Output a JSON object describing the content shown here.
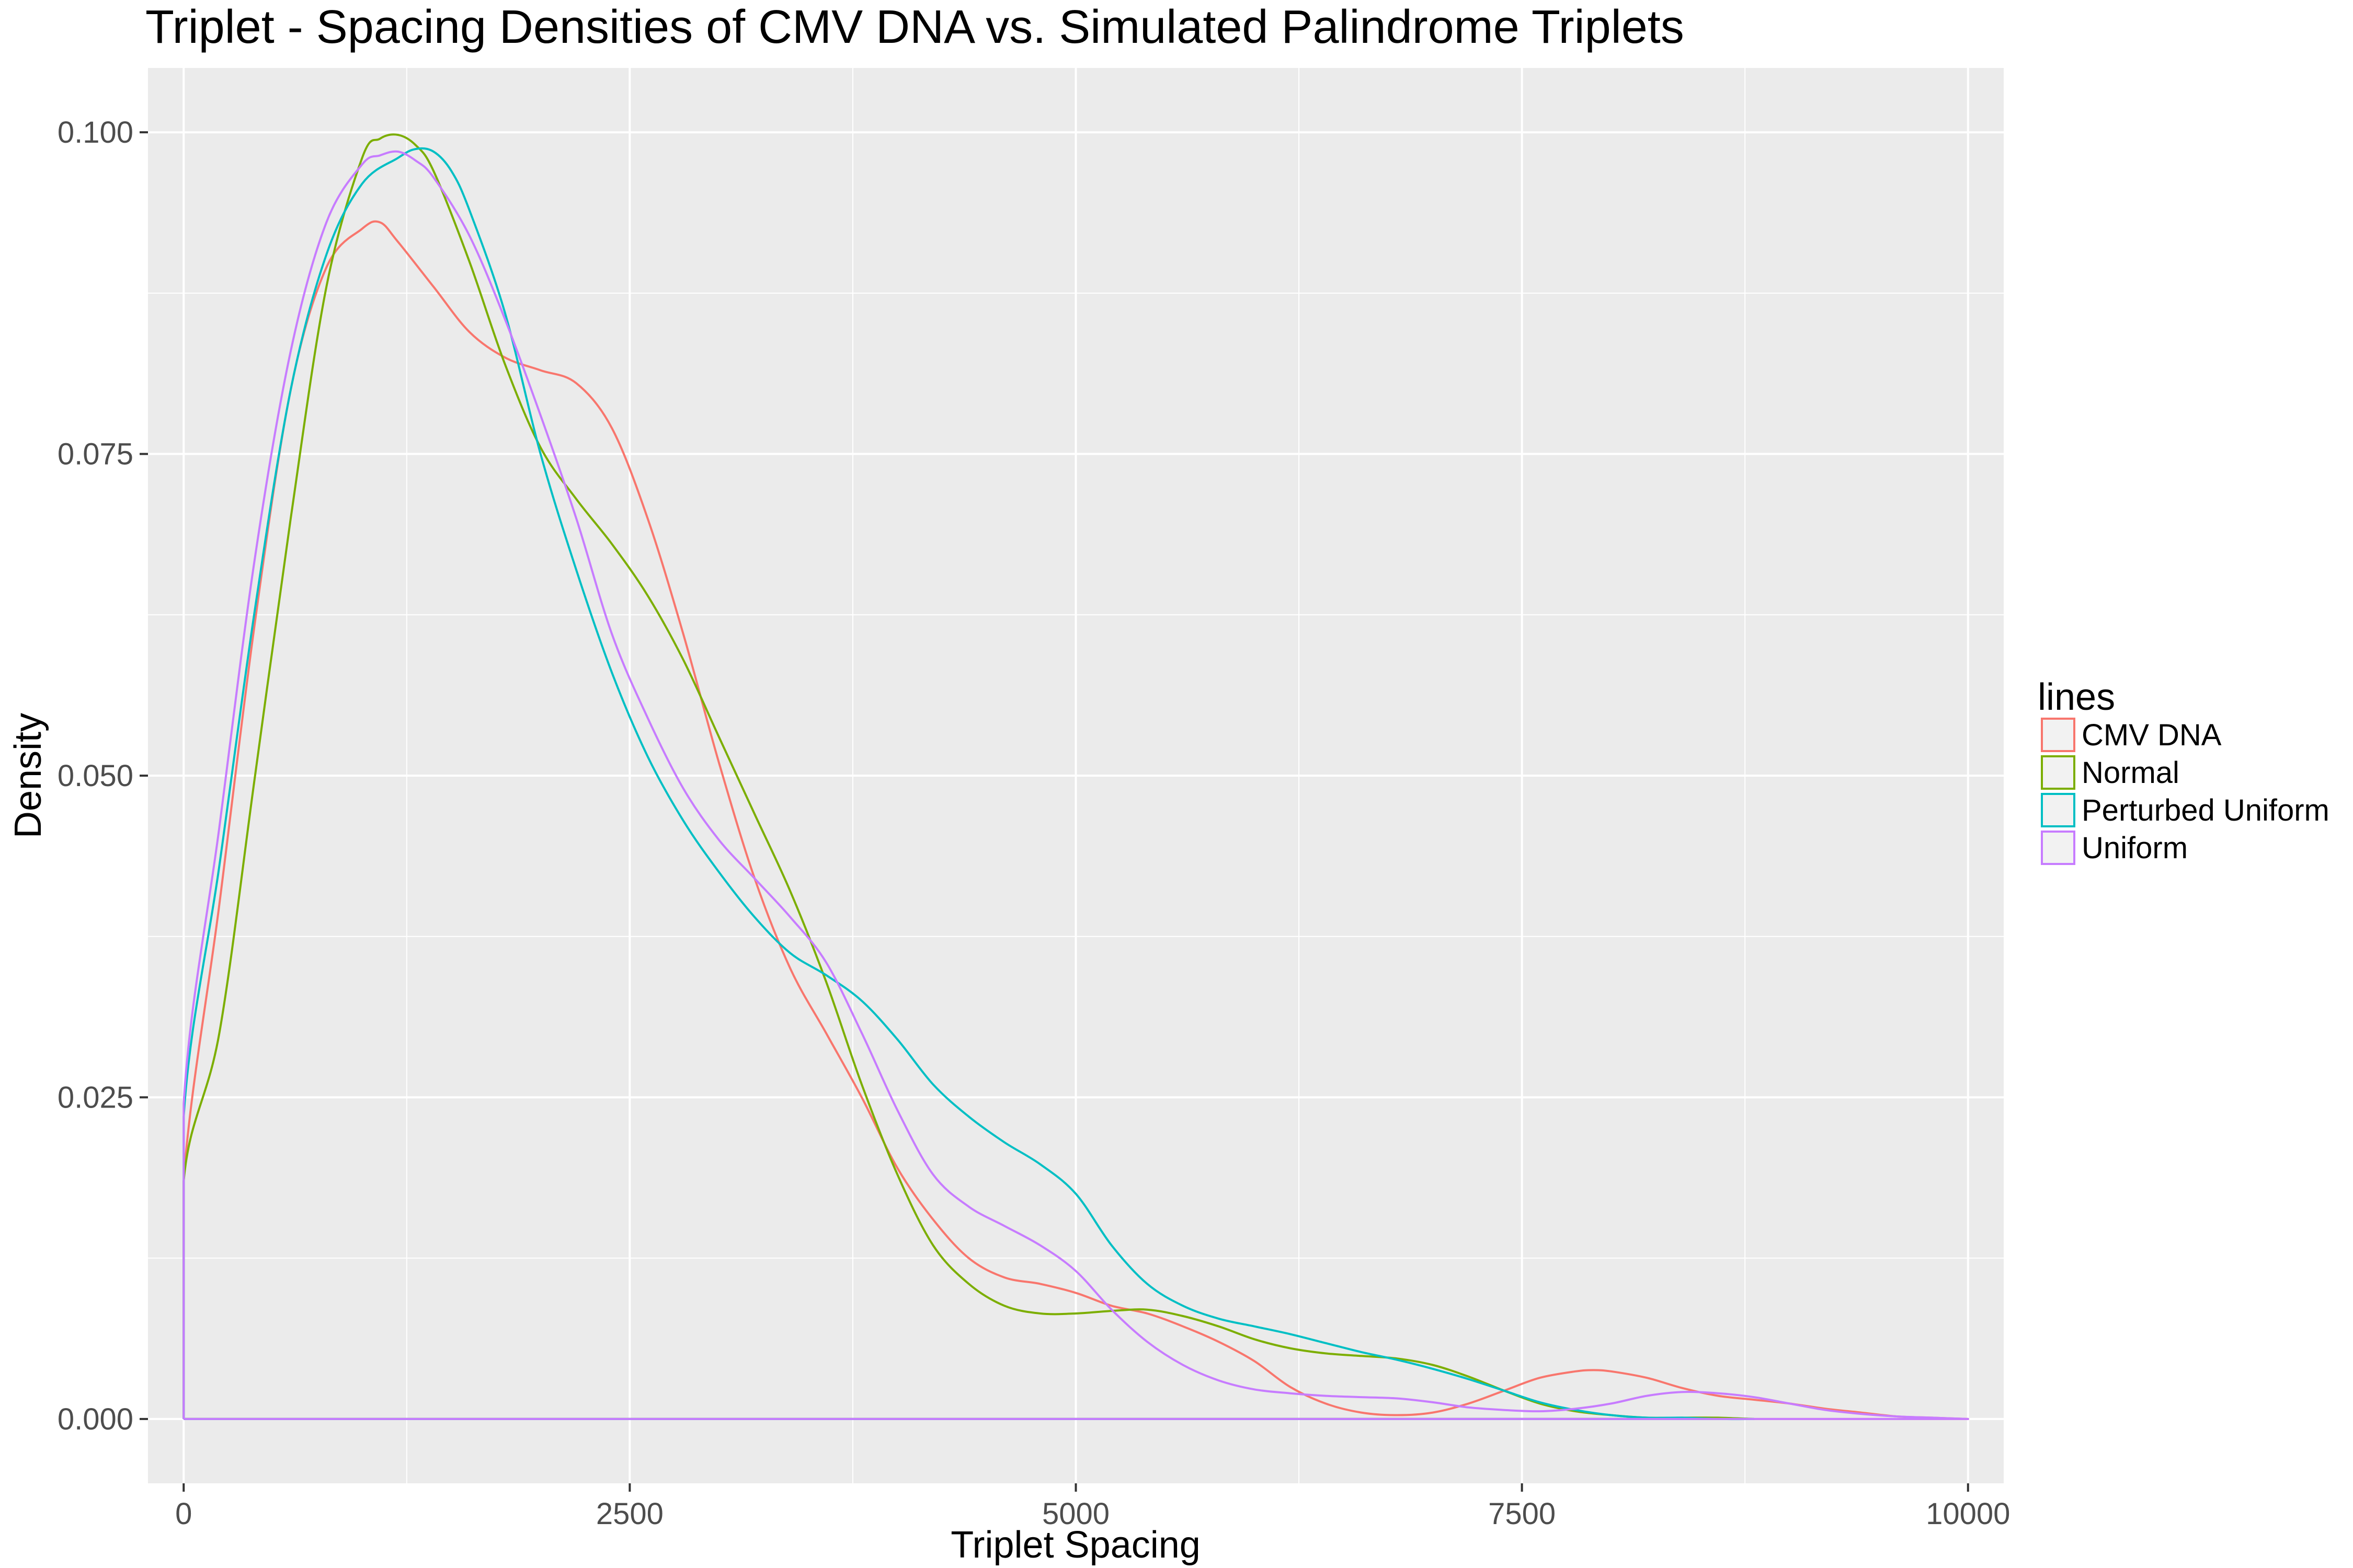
{
  "chart_data": {
    "type": "line",
    "title": "Triplet - Spacing Densities of CMV DNA vs. Simulated Palindrome Triplets",
    "xlabel": "Triplet Spacing",
    "ylabel": "Density",
    "xlim": [
      -200,
      10200
    ],
    "ylim": [
      -0.005,
      0.105
    ],
    "xticks": [
      0,
      2500,
      5000,
      7500,
      10000
    ],
    "xtick_labels": [
      "0",
      "2500",
      "5000",
      "7500",
      "10000"
    ],
    "yticks": [
      0.0,
      0.025,
      0.05,
      0.075,
      0.1
    ],
    "ytick_labels": [
      "0.000",
      "0.025",
      "0.050",
      "0.075",
      "0.100"
    ],
    "grid": true,
    "legend": {
      "title": "lines",
      "position": "right"
    },
    "series": [
      {
        "name": "CMV DNA",
        "color": "#F8766D",
        "x": [
          0,
          0,
          200,
          400,
          600,
          800,
          1000,
          1100,
          1200,
          1400,
          1600,
          1800,
          2000,
          2200,
          2400,
          2600,
          2800,
          3000,
          3200,
          3400,
          3600,
          3800,
          4000,
          4200,
          4400,
          4600,
          4800,
          5000,
          5200,
          5400,
          5600,
          5800,
          6000,
          6200,
          6400,
          6600,
          6800,
          7000,
          7200,
          7400,
          7600,
          7800,
          7900,
          8000,
          8200,
          8400,
          8600,
          8800,
          9000,
          9200,
          9400,
          9600,
          9800,
          10000,
          10000,
          0
        ],
        "y": [
          0.0,
          0.0185,
          0.04,
          0.062,
          0.08,
          0.0895,
          0.0925,
          0.093,
          0.0915,
          0.088,
          0.0845,
          0.0825,
          0.0815,
          0.0805,
          0.077,
          0.07,
          0.061,
          0.051,
          0.042,
          0.035,
          0.03,
          0.025,
          0.0195,
          0.0155,
          0.0125,
          0.011,
          0.0105,
          0.0098,
          0.0088,
          0.0082,
          0.0072,
          0.006,
          0.0045,
          0.0025,
          0.0012,
          0.0005,
          0.0003,
          0.0005,
          0.0012,
          0.0022,
          0.0032,
          0.0037,
          0.0038,
          0.0037,
          0.0032,
          0.0024,
          0.0018,
          0.0015,
          0.0012,
          0.0008,
          0.0005,
          0.0002,
          0.0001,
          0.0,
          0.0,
          0.0
        ]
      },
      {
        "name": "Normal",
        "color": "#7CAE00",
        "x": [
          0,
          0,
          200,
          400,
          600,
          800,
          1000,
          1100,
          1200,
          1300,
          1400,
          1600,
          1800,
          2000,
          2200,
          2400,
          2600,
          2800,
          3000,
          3200,
          3400,
          3600,
          3800,
          4000,
          4200,
          4400,
          4600,
          4800,
          5000,
          5200,
          5400,
          5600,
          5800,
          6000,
          6200,
          6400,
          6600,
          6800,
          7000,
          7200,
          7400,
          7600,
          7800,
          8000,
          8200,
          8400,
          8600,
          8800,
          8800,
          0
        ],
        "y": [
          0.0,
          0.0185,
          0.03,
          0.05,
          0.07,
          0.088,
          0.098,
          0.0995,
          0.0998,
          0.099,
          0.097,
          0.09,
          0.082,
          0.0755,
          0.0715,
          0.068,
          0.064,
          0.059,
          0.053,
          0.047,
          0.041,
          0.034,
          0.026,
          0.019,
          0.0135,
          0.0105,
          0.0088,
          0.0082,
          0.0082,
          0.0084,
          0.0085,
          0.008,
          0.0072,
          0.0062,
          0.0055,
          0.0051,
          0.0049,
          0.0047,
          0.0042,
          0.0033,
          0.0022,
          0.0012,
          0.0006,
          0.0003,
          0.0001,
          0.0001,
          0.0001,
          0.0,
          0.0,
          0.0
        ]
      },
      {
        "name": "Perturbed Uniform",
        "color": "#00BFC4",
        "x": [
          0,
          0,
          200,
          400,
          600,
          800,
          1000,
          1200,
          1300,
          1400,
          1500,
          1600,
          1800,
          2000,
          2200,
          2400,
          2600,
          2800,
          3000,
          3200,
          3400,
          3600,
          3800,
          4000,
          4200,
          4400,
          4600,
          4800,
          5000,
          5200,
          5400,
          5600,
          5800,
          6000,
          6200,
          6400,
          6600,
          6800,
          7000,
          7200,
          7400,
          7600,
          7800,
          8000,
          8200,
          8400,
          8600,
          8800,
          8800,
          0
        ],
        "y": [
          0.0,
          0.0235,
          0.043,
          0.063,
          0.08,
          0.0905,
          0.096,
          0.098,
          0.0987,
          0.0985,
          0.097,
          0.094,
          0.086,
          0.075,
          0.066,
          0.058,
          0.0515,
          0.0465,
          0.0425,
          0.039,
          0.0362,
          0.0345,
          0.0325,
          0.0295,
          0.026,
          0.0235,
          0.0215,
          0.0198,
          0.0175,
          0.0135,
          0.0105,
          0.0088,
          0.0078,
          0.0072,
          0.0066,
          0.0059,
          0.0052,
          0.0046,
          0.0039,
          0.0031,
          0.0022,
          0.0013,
          0.0007,
          0.0003,
          0.0001,
          0.0001,
          0.0,
          0.0,
          0.0,
          0.0
        ]
      },
      {
        "name": "Uniform",
        "color": "#C77CFF",
        "x": [
          0,
          0,
          200,
          400,
          600,
          800,
          1000,
          1100,
          1200,
          1300,
          1400,
          1600,
          1800,
          2000,
          2200,
          2400,
          2600,
          2800,
          3000,
          3200,
          3400,
          3600,
          3800,
          4000,
          4200,
          4400,
          4600,
          4800,
          5000,
          5200,
          5400,
          5600,
          5800,
          6000,
          6200,
          6400,
          6600,
          6800,
          7000,
          7200,
          7400,
          7600,
          7800,
          8000,
          8200,
          8400,
          8600,
          8800,
          9000,
          9200,
          9400,
          9600,
          9800,
          10000,
          10000,
          0
        ],
        "y": [
          0.0,
          0.0245,
          0.046,
          0.067,
          0.083,
          0.093,
          0.0975,
          0.0982,
          0.0985,
          0.0978,
          0.0965,
          0.092,
          0.0855,
          0.078,
          0.07,
          0.061,
          0.0545,
          0.049,
          0.045,
          0.042,
          0.039,
          0.0355,
          0.03,
          0.024,
          0.019,
          0.0165,
          0.015,
          0.0135,
          0.0115,
          0.0085,
          0.006,
          0.0042,
          0.003,
          0.0023,
          0.002,
          0.0018,
          0.0017,
          0.0016,
          0.0013,
          0.0009,
          0.0007,
          0.0006,
          0.0008,
          0.0012,
          0.0018,
          0.0021,
          0.002,
          0.0017,
          0.0012,
          0.0007,
          0.0004,
          0.0002,
          0.0001,
          0.0,
          0.0,
          0.0
        ]
      }
    ]
  }
}
